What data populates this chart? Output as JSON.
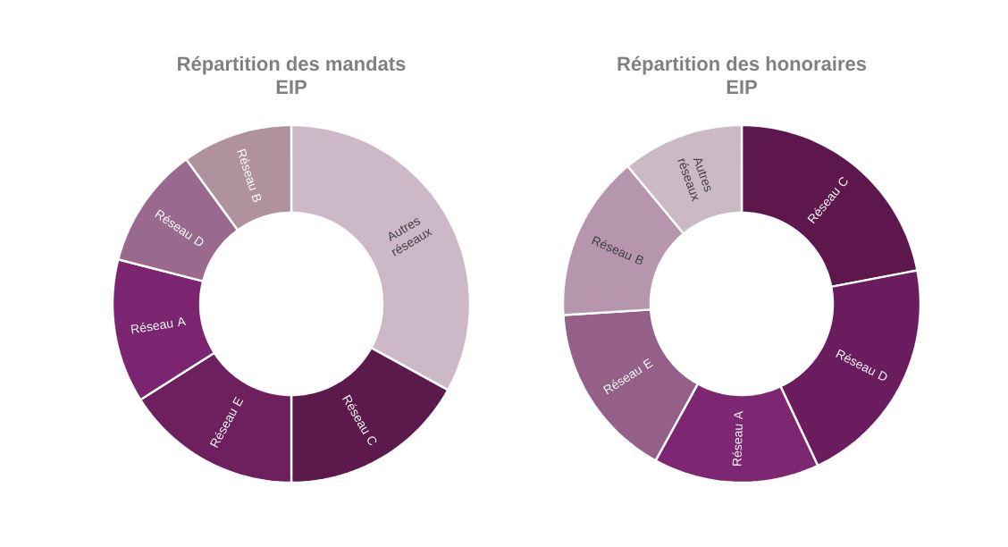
{
  "chart_data": [
    {
      "type": "donut",
      "title": "Répartition des mandats",
      "subtitle": "EIP",
      "categories": [
        "Autres réseaux",
        "Réseau C",
        "Réseau E",
        "Réseau A",
        "Réseau D",
        "Réseau B"
      ],
      "values": [
        33,
        17,
        16,
        13,
        11,
        10
      ],
      "colors": [
        "#cdb8c8",
        "#5b1a4b",
        "#6d1f5e",
        "#7b2470",
        "#9a6a8e",
        "#b0929f"
      ]
    },
    {
      "type": "donut",
      "title": "Répartition des honoraires",
      "subtitle": "EIP",
      "categories": [
        "Réseau C",
        "Réseau D",
        "Réseau A",
        "Réseau E",
        "Réseau B",
        "Autres réseaux"
      ],
      "values": [
        22,
        21,
        15,
        16,
        15,
        11
      ],
      "colors": [
        "#5e174d",
        "#6b1c5e",
        "#7d2672",
        "#946088",
        "#b596ad",
        "#cbb9c6"
      ]
    }
  ]
}
